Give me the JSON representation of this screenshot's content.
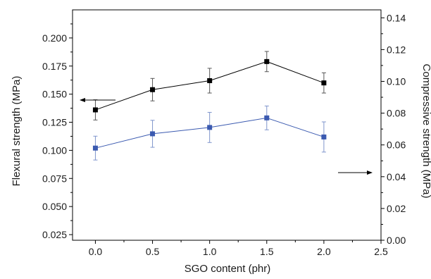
{
  "chart_data": {
    "type": "line",
    "xlabel": "SGO content (phr)",
    "ylabel_left": "Flexural strength (MPa)",
    "ylabel_right": "Compressive strength (MPa)",
    "xlim": [
      -0.2,
      2.5
    ],
    "ylim_left": [
      0.02,
      0.225
    ],
    "ylim_right": [
      0.0,
      0.145
    ],
    "x_ticks": [
      "0.0",
      "0.5",
      "1.0",
      "1.5",
      "2.0",
      "2.5"
    ],
    "y_left_ticks": [
      "0.025",
      "0.050",
      "0.075",
      "0.100",
      "0.125",
      "0.150",
      "0.175",
      "0.200"
    ],
    "y_right_ticks": [
      "0.00",
      "0.02",
      "0.04",
      "0.06",
      "0.08",
      "0.10",
      "0.12",
      "0.14"
    ],
    "grid": false,
    "series": [
      {
        "axis": "left",
        "color": "#000000",
        "marker": "square",
        "x": [
          0.0,
          0.5,
          1.0,
          1.5,
          2.0
        ],
        "y": [
          0.136,
          0.154,
          0.162,
          0.179,
          0.16
        ],
        "error": [
          0.009,
          0.01,
          0.011,
          0.009,
          0.009
        ]
      },
      {
        "axis": "right",
        "color": "#3b5ab0",
        "marker": "square",
        "x": [
          0.0,
          0.5,
          1.0,
          1.5,
          2.0
        ],
        "y": [
          0.058,
          0.067,
          0.071,
          0.077,
          0.065
        ],
        "error": [
          0.0075,
          0.0085,
          0.0095,
          0.0075,
          0.0095
        ]
      }
    ],
    "annotations": [
      {
        "type": "arrow",
        "direction": "left",
        "series": 0
      },
      {
        "type": "arrow",
        "direction": "right",
        "series": 1
      }
    ]
  }
}
